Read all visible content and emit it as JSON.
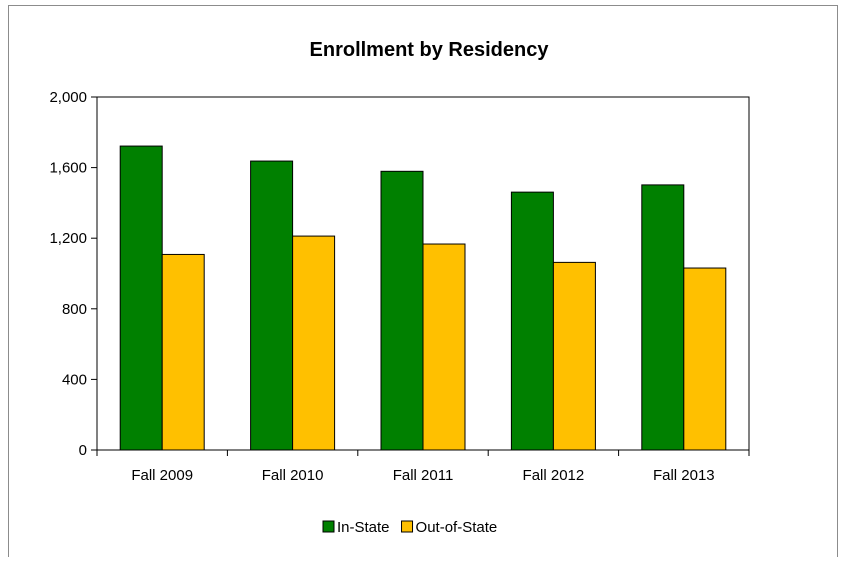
{
  "chart_data": {
    "type": "bar",
    "title": "Enrollment by Residency",
    "xlabel": "",
    "ylabel": "",
    "categories": [
      "Fall 2009",
      "Fall 2010",
      "Fall 2011",
      "Fall 2012",
      "Fall 2013"
    ],
    "series": [
      {
        "name": "In-State",
        "color": "#008000",
        "values": [
          1722,
          1637,
          1579,
          1461,
          1502
        ]
      },
      {
        "name": "Out-of-State",
        "color": "#ffc000",
        "values": [
          1108,
          1212,
          1167,
          1063,
          1031
        ]
      }
    ],
    "ylim": [
      0,
      2000
    ],
    "yticks": [
      0,
      400,
      800,
      1200,
      1600,
      2000
    ],
    "ytick_labels": [
      "0",
      "400",
      "800",
      "1,200",
      "1,600",
      "2,000"
    ],
    "grid": false,
    "legend_position": "bottom"
  }
}
